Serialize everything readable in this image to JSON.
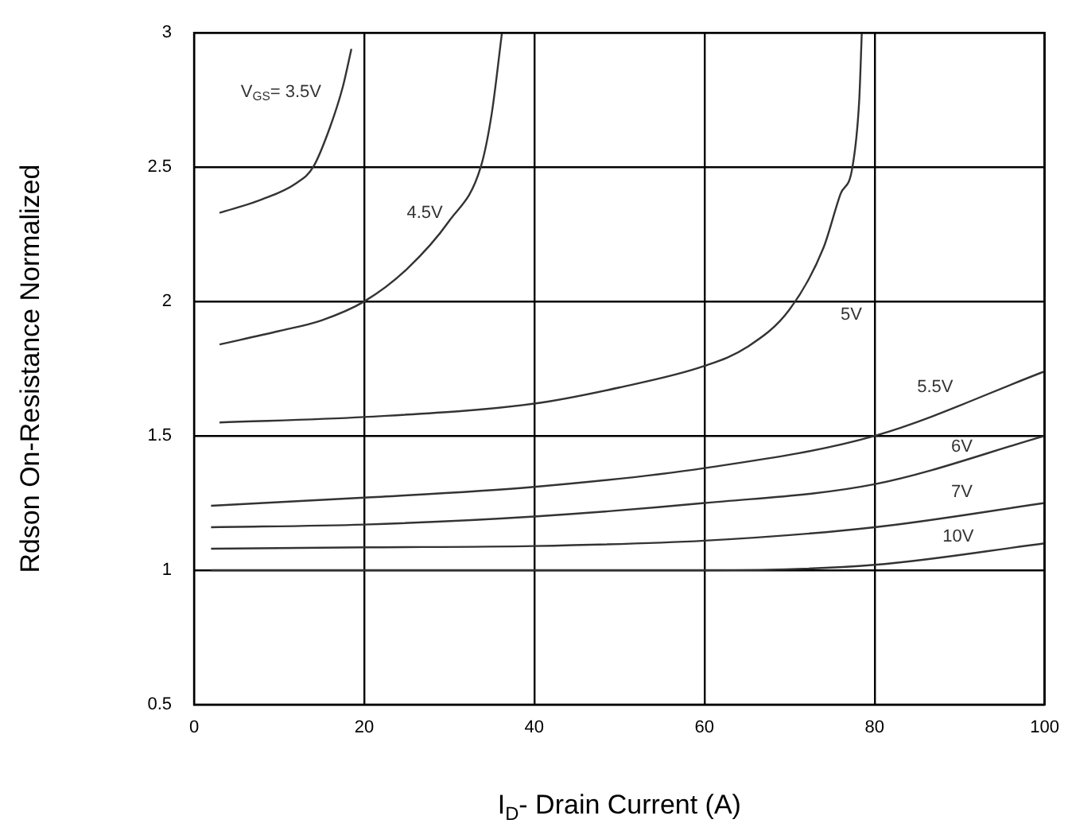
{
  "chart_data": {
    "type": "line",
    "xlabel": "I$_{D}$- Drain Current (A)",
    "ylabel": "Rdson On-Resistance Normalized",
    "xlim": [
      0,
      100
    ],
    "xticks": [
      0,
      20,
      40,
      60,
      80,
      100
    ],
    "ylim": [
      0.5,
      3
    ],
    "yticks": [
      0.5,
      1,
      1.5,
      2,
      2.5,
      3
    ],
    "grid": true,
    "marker": "none",
    "line_style": "solid",
    "series": [
      {
        "name": "V$_{GS}$= 3.5V",
        "color": "#333333",
        "x": [
          3,
          8,
          12,
          14,
          16,
          17.5,
          18.5
        ],
        "values": [
          2.33,
          2.38,
          2.44,
          2.5,
          2.65,
          2.8,
          2.94
        ]
      },
      {
        "name": "4.5V",
        "color": "#333333",
        "x": [
          3,
          10,
          15,
          20,
          25,
          30,
          33.7,
          35,
          36.2
        ],
        "values": [
          1.84,
          1.89,
          1.93,
          2.0,
          2.12,
          2.3,
          2.5,
          2.7,
          3.0
        ]
      },
      {
        "name": "5V",
        "color": "#333333",
        "x": [
          3,
          20,
          40,
          50,
          60,
          65,
          70,
          74,
          76,
          77.4,
          78.2,
          78.5
        ],
        "values": [
          1.55,
          1.57,
          1.62,
          1.68,
          1.76,
          1.83,
          1.97,
          2.2,
          2.4,
          2.5,
          2.75,
          3.0
        ]
      },
      {
        "name": "5.5V",
        "color": "#333333",
        "x": [
          2,
          20,
          40,
          60,
          80,
          100
        ],
        "values": [
          1.24,
          1.27,
          1.31,
          1.38,
          1.5,
          1.74
        ]
      },
      {
        "name": "6V",
        "color": "#333333",
        "x": [
          2,
          20,
          40,
          60,
          80,
          100
        ],
        "values": [
          1.16,
          1.17,
          1.2,
          1.25,
          1.32,
          1.5
        ]
      },
      {
        "name": "7V",
        "color": "#333333",
        "x": [
          2,
          20,
          40,
          60,
          80,
          100
        ],
        "values": [
          1.08,
          1.085,
          1.09,
          1.11,
          1.16,
          1.25
        ]
      },
      {
        "name": "10V",
        "color": "#333333",
        "x": [
          2,
          20,
          40,
          60,
          80,
          100
        ],
        "values": [
          1.0,
          1.0,
          1.0,
          1.0,
          1.02,
          1.1
        ]
      }
    ]
  }
}
